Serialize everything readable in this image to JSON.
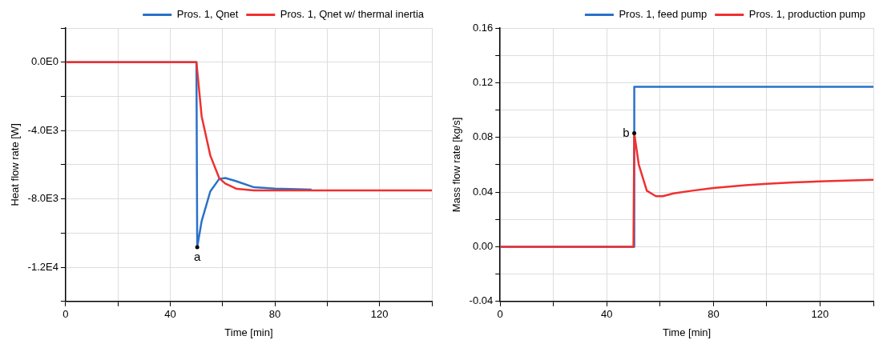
{
  "chart_data": [
    {
      "type": "line",
      "xlabel": "Time [min]",
      "ylabel": "Heat flow rate [W]",
      "xlim": [
        0,
        140
      ],
      "xticks": [
        0,
        {
          "value": 20,
          "label": null
        },
        40,
        {
          "value": 60,
          "label": null
        },
        80,
        {
          "value": 100,
          "label": null
        },
        120,
        {
          "value": 140,
          "label": null
        }
      ],
      "ylim": [
        -14000,
        2000
      ],
      "yticks": [
        {
          "value": 2000,
          "label": null
        },
        {
          "value": 0,
          "label": "0.0E0"
        },
        {
          "value": -2000,
          "label": null
        },
        {
          "value": -4000,
          "label": "-4.0E3"
        },
        {
          "value": -6000,
          "label": null
        },
        {
          "value": -8000,
          "label": "-8.0E3"
        },
        {
          "value": -10000,
          "label": null
        },
        {
          "value": -12000,
          "label": "-1.2E4"
        },
        {
          "value": -14000,
          "label": null
        }
      ],
      "grid": true,
      "legend": "top",
      "marker": "none",
      "line_style": "solid",
      "annotations": [
        {
          "text": "a",
          "x": 50.3,
          "y": -10830
        }
      ],
      "series": [
        {
          "name": "Pros. 1, Qnet",
          "color": "#2a72c8",
          "x": [
            0,
            50,
            50.3,
            52,
            55.3,
            58.7,
            61,
            65,
            72,
            80,
            94
          ],
          "values": [
            0,
            0,
            -10830,
            -9300,
            -7560,
            -6830,
            -6780,
            -6950,
            -7320,
            -7400,
            -7450
          ]
        },
        {
          "name": "Pros. 1, Qnet w/ thermal inertia",
          "color": "#f03030",
          "x": [
            0,
            50,
            52,
            55.3,
            58.7,
            61,
            65.4,
            72,
            80,
            140
          ],
          "values": [
            0,
            0,
            -3170,
            -5460,
            -6780,
            -7100,
            -7410,
            -7500,
            -7500,
            -7500
          ]
        }
      ]
    },
    {
      "type": "line",
      "xlabel": "Time [min]",
      "ylabel": "Mass flow rate [kg/s]",
      "xlim": [
        0,
        140
      ],
      "xticks": [
        0,
        {
          "value": 20,
          "label": null
        },
        40,
        {
          "value": 60,
          "label": null
        },
        80,
        {
          "value": 100,
          "label": null
        },
        120,
        {
          "value": 140,
          "label": null
        }
      ],
      "ylim": [
        -0.04,
        0.16
      ],
      "yticks": [
        {
          "value": 0.16,
          "label": "0.16"
        },
        {
          "value": 0.14,
          "label": null
        },
        {
          "value": 0.12,
          "label": "0.12"
        },
        {
          "value": 0.1,
          "label": null
        },
        {
          "value": 0.08,
          "label": "0.08"
        },
        {
          "value": 0.06,
          "label": null
        },
        {
          "value": 0.04,
          "label": "0.04"
        },
        {
          "value": 0.02,
          "label": null
        },
        {
          "value": 0,
          "label": "0.00"
        },
        {
          "value": -0.02,
          "label": null
        },
        {
          "value": -0.04,
          "label": "-0.04"
        }
      ],
      "grid": true,
      "legend": "top",
      "marker": "none",
      "line_style": "solid",
      "annotations": [
        {
          "text": "b",
          "x": 50.3,
          "y": 0.083
        }
      ],
      "series": [
        {
          "name": "Pros. 1, feed pump",
          "color": "#2a72c8",
          "x": [
            0,
            50.3,
            50.3,
            140
          ],
          "values": [
            0,
            0,
            0.117,
            0.117
          ]
        },
        {
          "name": "Pros. 1, production pump",
          "color": "#f03030",
          "x": [
            0,
            50,
            50.3,
            52,
            55,
            58.4,
            61,
            65,
            72,
            80,
            92,
            100,
            110,
            122,
            140
          ],
          "values": [
            0,
            0,
            0.083,
            0.06,
            0.041,
            0.037,
            0.037,
            0.039,
            0.041,
            0.043,
            0.045,
            0.046,
            0.047,
            0.048,
            0.049
          ]
        }
      ]
    }
  ]
}
